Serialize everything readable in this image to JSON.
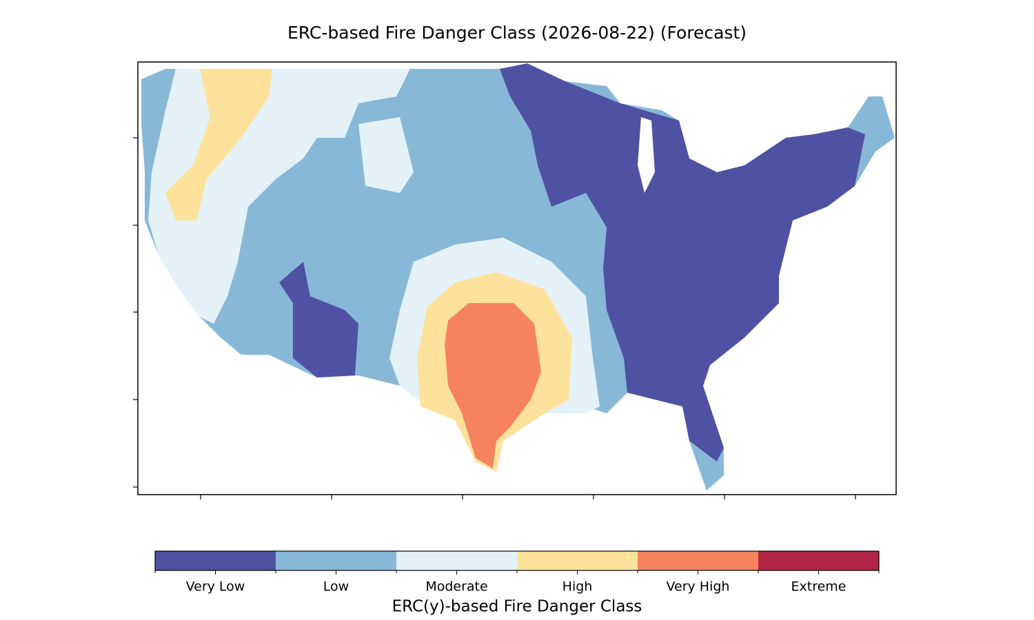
{
  "title": "ERC-based Fire Danger Class (2026-08-22) (Forecast)",
  "colorbar": {
    "label": "ERC(y)-based Fire Danger Class",
    "classes": [
      {
        "label": "Very Low",
        "color": "#4f51a3"
      },
      {
        "label": "Low",
        "color": "#88b8d8"
      },
      {
        "label": "Moderate",
        "color": "#e4f2f8"
      },
      {
        "label": "High",
        "color": "#fee29b"
      },
      {
        "label": "Very High",
        "color": "#f5845e"
      },
      {
        "label": "Extreme",
        "color": "#b12444"
      }
    ]
  }
}
